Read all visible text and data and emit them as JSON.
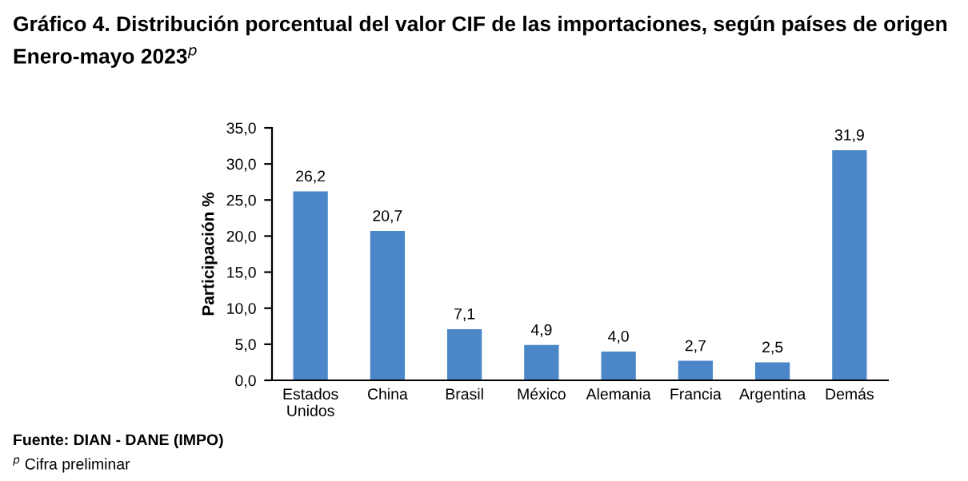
{
  "chart_data": {
    "type": "bar",
    "title": "Gráfico 4. Distribución porcentual del valor CIF de las importaciones, según países de origen",
    "subtitle": "Enero-mayo 2023$^{p}$",
    "ylabel": "Participación %",
    "categories": [
      "Estados\nUnidos",
      "China",
      "Brasil",
      "México",
      "Alemania",
      "Francia",
      "Argentina",
      "Demás"
    ],
    "values": [
      26.2,
      20.7,
      7.1,
      4.9,
      4.0,
      2.7,
      2.5,
      31.9
    ],
    "value_labels": [
      "26,2",
      "20,7",
      "7,1",
      "4,9",
      "4,0",
      "2,7",
      "2,5",
      "31,9"
    ],
    "color": "#4a86c8",
    "ylim": [
      0,
      35
    ],
    "yticks": [
      {
        "value": 0,
        "label": "0,0"
      },
      {
        "value": 5,
        "label": "5,0"
      },
      {
        "value": 10,
        "label": "10,0"
      },
      {
        "value": 15,
        "label": "15,0"
      },
      {
        "value": 20,
        "label": "20,0"
      },
      {
        "value": 25,
        "label": "25,0"
      },
      {
        "value": 30,
        "label": "30,0"
      },
      {
        "value": 35,
        "label": "35,0"
      }
    ],
    "grid": false,
    "annotations": [
      "Fuente: DIAN - DANE (IMPO)",
      "$^{p}$ Cifra preliminar"
    ]
  }
}
